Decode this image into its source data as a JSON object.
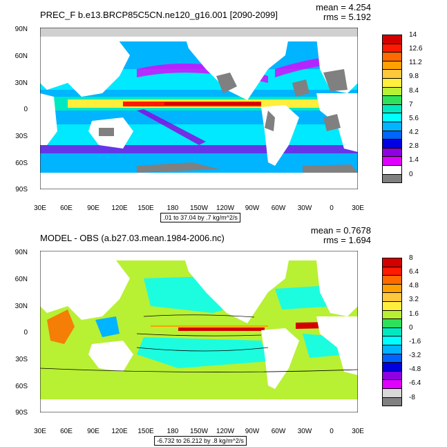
{
  "chart_data": [
    {
      "type": "heatmap",
      "title": "PREC_F b.e13.BRCP85C5CN.ne120_g16.001 [2090-2099]",
      "stats": {
        "mean": "mean = 4.254",
        "rms": "rms = 5.192"
      },
      "ytick_labels": [
        "90N",
        "60N",
        "30N",
        "0",
        "30S",
        "60S",
        "90S"
      ],
      "xtick_labels": [
        "30E",
        "60E",
        "90E",
        "120E",
        "150E",
        "180",
        "150W",
        "120W",
        "90W",
        "60W",
        "30W",
        "0",
        "30E"
      ],
      "range_text": ".01 to 37.04 by .7 kg/m^2/s",
      "colorbar": {
        "labels": [
          "14",
          "12.6",
          "11.2",
          "9.8",
          "8.4",
          "7",
          "5.6",
          "4.2",
          "2.8",
          "1.4",
          "0"
        ],
        "colors": [
          "#d40000",
          "#ff1a00",
          "#ff6a00",
          "#ffa000",
          "#ffc83c",
          "#ffee3c",
          "#b8f034",
          "#2ee05a",
          "#00e8c0",
          "#00ffff",
          "#00b4ff",
          "#0064ff",
          "#0000e0",
          "#9000e0",
          "#e000ff",
          "#ffffff",
          "#808080"
        ]
      },
      "xlim": [
        30,
        390
      ],
      "ylim": [
        -90,
        90
      ]
    },
    {
      "type": "heatmap",
      "title": "MODEL - OBS (a.b27.03.mean.1984-2006.nc)",
      "stats": {
        "mean": "mean = 0.7678",
        "rms": "rms = 1.694"
      },
      "ytick_labels": [
        "90N",
        "60N",
        "30N",
        "0",
        "30S",
        "60S",
        "90S"
      ],
      "xtick_labels": [
        "30E",
        "60E",
        "90E",
        "120E",
        "150E",
        "180",
        "150W",
        "120W",
        "90W",
        "60W",
        "30W",
        "0",
        "30E"
      ],
      "range_text": "-6.732 to 26.212 by .8 kg/m^2/s",
      "colorbar": {
        "labels": [
          "8",
          "6.4",
          "4.8",
          "3.2",
          "1.6",
          "0",
          "-1.6",
          "-3.2",
          "-4.8",
          "-6.4",
          "-8"
        ],
        "colors": [
          "#d40000",
          "#ff1a00",
          "#ff6a00",
          "#ffa000",
          "#ffc83c",
          "#ffee3c",
          "#b8f034",
          "#2ee05a",
          "#00e8c0",
          "#00ffff",
          "#00b4ff",
          "#0064ff",
          "#0000e0",
          "#9000e0",
          "#e000ff",
          "#d8d8d8",
          "#808080"
        ]
      },
      "xlim": [
        30,
        390
      ],
      "ylim": [
        -90,
        90
      ]
    }
  ]
}
